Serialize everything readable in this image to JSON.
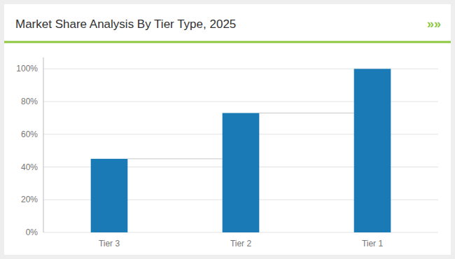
{
  "chart_data": {
    "type": "bar",
    "title": "Market Share Analysis By Tier Type, 2025",
    "annotations": [
      "»»"
    ],
    "categories": [
      "Tier 3",
      "Tier 2",
      "Tier 1"
    ],
    "values": [
      45,
      73,
      100
    ],
    "color": "#1a7ab5",
    "ylim": [
      0,
      107
    ],
    "yticks": [
      {
        "value": 0,
        "label": "0%"
      },
      {
        "value": 20,
        "label": "20%"
      },
      {
        "value": 40,
        "label": "40%"
      },
      {
        "value": 60,
        "label": "60%"
      },
      {
        "value": 80,
        "label": "80%"
      },
      {
        "value": 100,
        "label": "100%"
      }
    ],
    "grid": true
  }
}
